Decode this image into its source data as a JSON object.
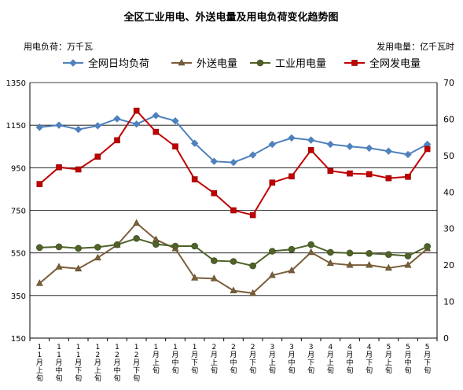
{
  "chart_data": {
    "type": "line",
    "title": "全区工业用电、外送电量及用电负荷变化趋势图",
    "left_unit": "用电负荷：万千瓦",
    "right_unit": "发用电量：亿千瓦时",
    "categories": [
      "11月上旬",
      "11月中旬",
      "11月下旬",
      "12月上旬",
      "12月中旬",
      "12月下旬",
      "1月上旬",
      "1月中旬",
      "1月下旬",
      "2月上旬",
      "2月中旬",
      "2月下旬",
      "3月上旬",
      "3月中旬",
      "3月下旬",
      "4月上旬",
      "4月中旬",
      "4月下旬",
      "5月上旬",
      "5月中旬",
      "5月下旬"
    ],
    "y_left": {
      "min": 150,
      "max": 1350,
      "ticks": [
        150,
        350,
        550,
        750,
        950,
        1150,
        1350
      ]
    },
    "y_right": {
      "min": 0,
      "max": 70,
      "ticks": [
        0,
        10,
        20,
        30,
        40,
        50,
        60,
        70
      ]
    },
    "grid": true,
    "legend_position": "top",
    "series": [
      {
        "name": "全网日均负荷",
        "axis": "left",
        "color": "#4f81bd",
        "marker": "diamond",
        "values": [
          1140,
          1150,
          1130,
          1147,
          1180,
          1155,
          1195,
          1170,
          1065,
          980,
          975,
          1010,
          1060,
          1090,
          1080,
          1060,
          1050,
          1042,
          1028,
          1012,
          1060
        ]
      },
      {
        "name": "外送电量",
        "axis": "right",
        "color": "#7b5e3a",
        "marker": "triangle",
        "values": [
          15,
          19.5,
          19,
          22,
          25.5,
          31.5,
          27,
          24.5,
          16.5,
          16.3,
          13,
          12.3,
          17.2,
          18.5,
          23.5,
          20.5,
          20,
          20,
          19.2,
          20,
          24.5
        ]
      },
      {
        "name": "工业用电量",
        "axis": "right",
        "color": "#4f6228",
        "marker": "circle",
        "values": [
          24.8,
          25,
          24.6,
          24.9,
          25.6,
          27.3,
          25.7,
          25.2,
          25.2,
          21.2,
          21,
          19.8,
          23.8,
          24.3,
          25.6,
          23.5,
          23.3,
          23.2,
          22.9,
          22.5,
          25.1
        ]
      },
      {
        "name": "全网发电量",
        "axis": "right",
        "color": "#c00000",
        "marker": "square",
        "values": [
          42.2,
          46.8,
          46.2,
          49.7,
          54.2,
          62.3,
          56.5,
          52.5,
          43.5,
          39.7,
          35,
          33.7,
          42.6,
          44.3,
          51.5,
          45.8,
          45.1,
          44.9,
          43.8,
          44.2,
          51.8
        ]
      }
    ]
  }
}
